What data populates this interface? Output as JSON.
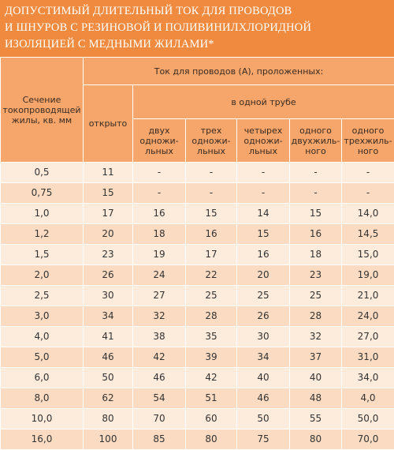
{
  "header": {
    "title_lines": [
      "ДОПУСТИМЫЙ ДЛИТЕЛЬНЫЙ ТОК ДЛЯ ПРОВОДОВ",
      "И ШНУРОВ С РЕЗИНОВОЙ И ПОЛИВИНИЛХЛОРИДНОЙ",
      "ИЗОЛЯЦИЕЙ С МЕДНЫМИ ЖИЛАМИ*"
    ]
  },
  "table": {
    "section_header": "Сечение\nтокопроводящей\nжилы, кв. мм",
    "current_header": "Ток для проводов (А), проложенных:",
    "open_header": "открыто",
    "pipe_header": "в одной трубе",
    "pipe_columns": [
      "двух\nодножи-\nльных",
      "трех\nодножи-\nльных",
      "четырех\nодножи-\nльных",
      "одного\nдвухжиль-\nного",
      "одного\nтрехжиль-\nного"
    ],
    "rows": [
      [
        "0,5",
        "11",
        "-",
        "-",
        "-",
        "-",
        "-"
      ],
      [
        "0,75",
        "15",
        "-",
        "-",
        "-",
        "-",
        "-"
      ],
      [
        "1,0",
        "17",
        "16",
        "15",
        "14",
        "15",
        "14,0"
      ],
      [
        "1,2",
        "20",
        "18",
        "16",
        "15",
        "16",
        "14,5"
      ],
      [
        "1,5",
        "23",
        "19",
        "17",
        "16",
        "18",
        "15,0"
      ],
      [
        "2,0",
        "26",
        "24",
        "22",
        "20",
        "23",
        "19,0"
      ],
      [
        "2,5",
        "30",
        "27",
        "25",
        "25",
        "25",
        "21,0"
      ],
      [
        "3,0",
        "34",
        "32",
        "28",
        "26",
        "28",
        "24,0"
      ],
      [
        "4,0",
        "41",
        "38",
        "35",
        "30",
        "32",
        "27,0"
      ],
      [
        "5,0",
        "46",
        "42",
        "39",
        "34",
        "37",
        "31,0"
      ],
      [
        "6,0",
        "50",
        "46",
        "42",
        "40",
        "40",
        "34,0"
      ],
      [
        "8,0",
        "62",
        "54",
        "51",
        "46",
        "48",
        "4,0"
      ],
      [
        "10,0",
        "80",
        "70",
        "60",
        "50",
        "55",
        "50,0"
      ],
      [
        "16,0",
        "100",
        "85",
        "80",
        "75",
        "80",
        "70,0"
      ]
    ]
  }
}
